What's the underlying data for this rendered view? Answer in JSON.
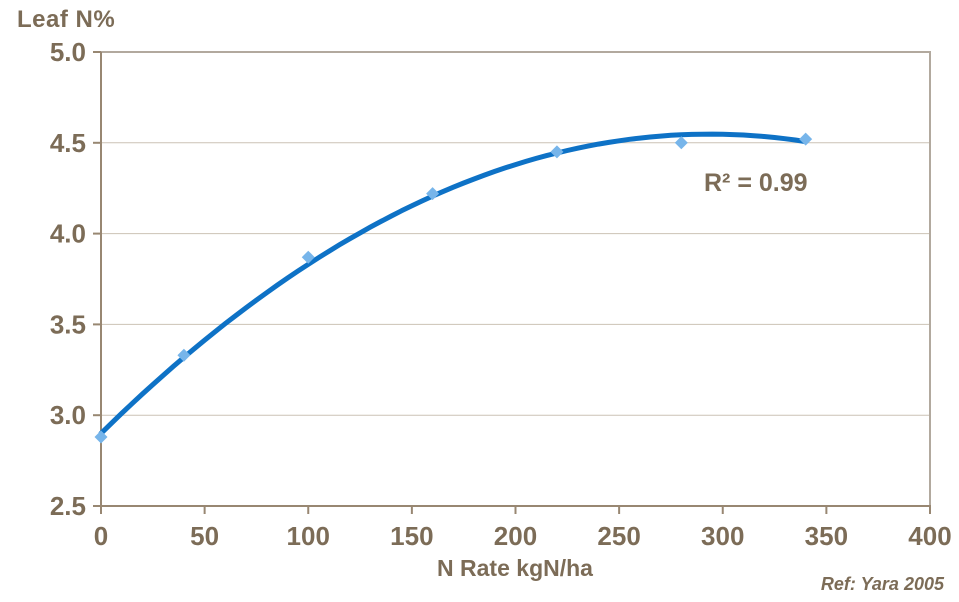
{
  "chart_data": {
    "type": "scatter",
    "title": "",
    "ylabel": "Leaf N%",
    "xlabel": "N Rate kgN/ha",
    "xlim": [
      0,
      400
    ],
    "ylim": [
      2.5,
      5.0
    ],
    "x_ticks": [
      0,
      50,
      100,
      150,
      200,
      250,
      300,
      350,
      400
    ],
    "x_tick_labels": [
      "0",
      "50",
      "100",
      "150",
      "200",
      "250",
      "300",
      "350",
      "400"
    ],
    "y_ticks": [
      2.5,
      3.0,
      3.5,
      4.0,
      4.5,
      5.0
    ],
    "y_tick_labels": [
      "2.5",
      "3.0",
      "3.5",
      "4.0",
      "4.5",
      "5.0"
    ],
    "grid": "horizontal",
    "legend": "none",
    "points": [
      {
        "x": 0,
        "y": 2.88
      },
      {
        "x": 40,
        "y": 3.33
      },
      {
        "x": 100,
        "y": 3.87
      },
      {
        "x": 160,
        "y": 4.22
      },
      {
        "x": 220,
        "y": 4.45
      },
      {
        "x": 280,
        "y": 4.5
      },
      {
        "x": 340,
        "y": 4.52
      }
    ],
    "trendline": {
      "shape": "quadratic",
      "c0": 2.9,
      "c1": 0.01122,
      "c2": -1.91e-05,
      "x_start": 0,
      "x_end": 340
    },
    "annotations": {
      "r_squared": "R² = 0.99",
      "reference": "Ref: Yara 2005"
    },
    "colors": {
      "text": "#7C6C57",
      "axis": "#988772",
      "gridline": "#CBC2B5",
      "plot_border": "#B2A99E",
      "line": "#0E72C6",
      "marker": "#77B5EA"
    }
  }
}
